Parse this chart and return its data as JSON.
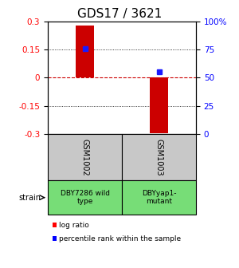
{
  "title": "GDS17 / 3621",
  "samples": [
    "GSM1002",
    "GSM1003"
  ],
  "log_ratios": [
    0.28,
    -0.295
  ],
  "percentile_ranks": [
    76,
    55
  ],
  "strain_labels": [
    "DBY7286 wild\ntype",
    "DBYyap1-\nmutant"
  ],
  "ylim_left": [
    -0.3,
    0.3
  ],
  "ylim_right": [
    0,
    100
  ],
  "left_ticks": [
    -0.3,
    -0.15,
    0,
    0.15,
    0.3
  ],
  "right_ticks": [
    0,
    25,
    50,
    75,
    100
  ],
  "right_tick_labels": [
    "0",
    "25",
    "50",
    "75",
    "100%"
  ],
  "bar_color": "#cc0000",
  "square_color": "#1a1aff",
  "zero_line_color": "#cc0000",
  "sample_box_color": "#c8c8c8",
  "strain_box_color": "#77dd77",
  "title_fontsize": 11,
  "legend_label_ratio": "log ratio",
  "legend_label_pct": "percentile rank within the sample",
  "strain_row_label": "strain",
  "bar_width": 0.12
}
